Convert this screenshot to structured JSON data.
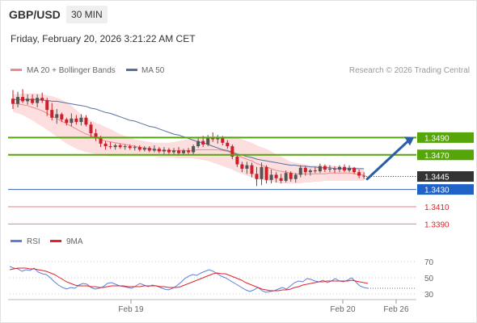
{
  "header": {
    "symbol": "GBP/USD",
    "timeframe": "30 MIN",
    "datetime": "Friday, February 20, 2026 3:21:22 AM CET"
  },
  "legend_top": {
    "bollinger_label": "MA 20 + Bollinger Bands",
    "ma50_label": "MA 50",
    "credit": "Research © 2026 Trading Central"
  },
  "legend_bottom": {
    "rsi_label": "RSI",
    "ma9_label": "9MA"
  },
  "colors": {
    "up_candle": "#555555",
    "down_candle": "#cc1f2a",
    "ma20": "#f08a8a",
    "bollinger_fill": "#fcdede",
    "ma50": "#5671a0",
    "resistance": "#56a60a",
    "support": "#f07f7f",
    "price": "#333333",
    "blue_label": "#1f63c8",
    "arrow": "#2a5fa8",
    "rsi": "#5b7fd8",
    "rsi_ma": "#e0242a",
    "grid": "#c8c8c8"
  },
  "chart_data": [
    {
      "type": "candlestick",
      "title": "GBP/USD",
      "x_labels": [
        "Feb 19",
        "Feb 20",
        "Feb 26"
      ],
      "ylim": [
        1.3382,
        1.3552
      ],
      "candles": [
        [
          1.3535,
          1.3545,
          1.3523,
          1.3529
        ],
        [
          1.3529,
          1.3543,
          1.3525,
          1.3537
        ],
        [
          1.3537,
          1.3546,
          1.353,
          1.3532
        ],
        [
          1.3532,
          1.354,
          1.3528,
          1.3535
        ],
        [
          1.3535,
          1.354,
          1.3528,
          1.353
        ],
        [
          1.353,
          1.354,
          1.3525,
          1.3536
        ],
        [
          1.3536,
          1.3542,
          1.353,
          1.3533
        ],
        [
          1.3533,
          1.3536,
          1.3515,
          1.3522
        ],
        [
          1.3522,
          1.353,
          1.351,
          1.3513
        ],
        [
          1.3513,
          1.3523,
          1.3506,
          1.3517
        ],
        [
          1.3517,
          1.3519,
          1.3508,
          1.3511
        ],
        [
          1.3511,
          1.3513,
          1.3504,
          1.3507
        ],
        [
          1.3507,
          1.3518,
          1.3503,
          1.3512
        ],
        [
          1.3512,
          1.3516,
          1.3505,
          1.3508
        ],
        [
          1.3508,
          1.3517,
          1.3504,
          1.3513
        ],
        [
          1.3513,
          1.3516,
          1.3503,
          1.3505
        ],
        [
          1.3505,
          1.3508,
          1.349,
          1.3495
        ],
        [
          1.3495,
          1.35,
          1.3486,
          1.3489
        ],
        [
          1.3489,
          1.3492,
          1.3479,
          1.3483
        ],
        [
          1.3483,
          1.3486,
          1.3476,
          1.348
        ],
        [
          1.348,
          1.3485,
          1.3477,
          1.3479
        ],
        [
          1.3479,
          1.3483,
          1.3476,
          1.3481
        ],
        [
          1.3481,
          1.3483,
          1.3477,
          1.3479
        ],
        [
          1.3479,
          1.3482,
          1.3476,
          1.348
        ],
        [
          1.348,
          1.3482,
          1.3476,
          1.3478
        ],
        [
          1.3478,
          1.3481,
          1.3475,
          1.3479
        ],
        [
          1.3479,
          1.3481,
          1.3474,
          1.3476
        ],
        [
          1.3476,
          1.348,
          1.3474,
          1.3478
        ],
        [
          1.3478,
          1.348,
          1.3473,
          1.3475
        ],
        [
          1.3475,
          1.3481,
          1.3473,
          1.3477
        ],
        [
          1.3477,
          1.3479,
          1.3472,
          1.3474
        ],
        [
          1.3474,
          1.3479,
          1.3471,
          1.3476
        ],
        [
          1.3476,
          1.3478,
          1.3471,
          1.3473
        ],
        [
          1.3473,
          1.3478,
          1.347,
          1.3475
        ],
        [
          1.3475,
          1.3479,
          1.3469,
          1.3472
        ],
        [
          1.3472,
          1.3477,
          1.347,
          1.3475
        ],
        [
          1.3475,
          1.3478,
          1.3471,
          1.3473
        ],
        [
          1.3473,
          1.3482,
          1.347,
          1.348
        ],
        [
          1.348,
          1.349,
          1.3478,
          1.3486
        ],
        [
          1.3486,
          1.3492,
          1.3479,
          1.3482
        ],
        [
          1.3482,
          1.3493,
          1.348,
          1.349
        ],
        [
          1.349,
          1.3496,
          1.3485,
          1.3488
        ],
        [
          1.3488,
          1.3493,
          1.3483,
          1.349
        ],
        [
          1.349,
          1.3492,
          1.3481,
          1.3484
        ],
        [
          1.3484,
          1.3487,
          1.3477,
          1.348
        ],
        [
          1.348,
          1.3482,
          1.3465,
          1.3468
        ],
        [
          1.3468,
          1.347,
          1.3456,
          1.3459
        ],
        [
          1.3459,
          1.3462,
          1.345,
          1.3454
        ],
        [
          1.3454,
          1.3462,
          1.3448,
          1.3458
        ],
        [
          1.3458,
          1.3461,
          1.3444,
          1.3448
        ],
        [
          1.3448,
          1.3456,
          1.3434,
          1.3442
        ],
        [
          1.3442,
          1.3461,
          1.3435,
          1.3456
        ],
        [
          1.3456,
          1.3458,
          1.3437,
          1.3441
        ],
        [
          1.3441,
          1.3453,
          1.3437,
          1.3447
        ],
        [
          1.3447,
          1.345,
          1.3438,
          1.3443
        ],
        [
          1.3443,
          1.3448,
          1.3437,
          1.344
        ],
        [
          1.344,
          1.3452,
          1.3438,
          1.3449
        ],
        [
          1.3449,
          1.3451,
          1.3439,
          1.3442
        ],
        [
          1.3442,
          1.3449,
          1.3438,
          1.3447
        ],
        [
          1.3447,
          1.3458,
          1.3444,
          1.3455
        ],
        [
          1.3455,
          1.3457,
          1.3446,
          1.345
        ],
        [
          1.345,
          1.3454,
          1.3446,
          1.3452
        ],
        [
          1.3452,
          1.3456,
          1.3449,
          1.3451
        ],
        [
          1.3451,
          1.346,
          1.3449,
          1.3457
        ],
        [
          1.3457,
          1.3459,
          1.345,
          1.3453
        ],
        [
          1.3453,
          1.3458,
          1.345,
          1.3454
        ],
        [
          1.3454,
          1.3457,
          1.3449,
          1.3453
        ],
        [
          1.3453,
          1.3458,
          1.345,
          1.3456
        ],
        [
          1.3456,
          1.3459,
          1.345,
          1.3452
        ],
        [
          1.3452,
          1.3458,
          1.345,
          1.3455
        ],
        [
          1.3455,
          1.3456,
          1.3448,
          1.345
        ],
        [
          1.345,
          1.3453,
          1.3443,
          1.3446
        ],
        [
          1.3446,
          1.345,
          1.3442,
          1.3445
        ]
      ],
      "ma20": [
        1.353,
        1.3529,
        1.3528,
        1.3527,
        1.3525,
        1.3523,
        1.3521,
        1.3518,
        1.3515,
        1.3512,
        1.3509,
        1.3506,
        1.3503,
        1.35,
        1.3497,
        1.3494,
        1.3492,
        1.349,
        1.3488,
        1.3486,
        1.3485,
        1.3484,
        1.3483,
        1.3482,
        1.3481,
        1.348,
        1.3479,
        1.3478,
        1.3477,
        1.3476,
        1.3475,
        1.3475,
        1.3475,
        1.3475,
        1.3475,
        1.3475,
        1.3475,
        1.3475,
        1.3476,
        1.3476,
        1.3476,
        1.3476,
        1.3476,
        1.3475,
        1.3474,
        1.3472,
        1.347,
        1.3467,
        1.3465,
        1.3463,
        1.346,
        1.3458,
        1.3456,
        1.3454,
        1.3452,
        1.3451,
        1.345,
        1.3449,
        1.3448,
        1.3448,
        1.3448,
        1.3448,
        1.3448,
        1.3448,
        1.3448,
        1.3449,
        1.3449,
        1.3449,
        1.3449,
        1.3449,
        1.3448,
        1.3447,
        1.3447
      ],
      "bollinger_upper": [
        1.354,
        1.354,
        1.3541,
        1.3541,
        1.3541,
        1.3541,
        1.354,
        1.3539,
        1.3538,
        1.3536,
        1.3534,
        1.3531,
        1.3527,
        1.3522,
        1.3517,
        1.3513,
        1.351,
        1.3507,
        1.3505,
        1.3502,
        1.35,
        1.3497,
        1.3494,
        1.3492,
        1.349,
        1.3488,
        1.3487,
        1.3486,
        1.3485,
        1.3484,
        1.3484,
        1.3484,
        1.3484,
        1.3485,
        1.3486,
        1.3487,
        1.3488,
        1.3489,
        1.349,
        1.3491,
        1.3491,
        1.3491,
        1.3491,
        1.3491,
        1.3491,
        1.3491,
        1.349,
        1.3488,
        1.3486,
        1.3484,
        1.3481,
        1.3479,
        1.3477,
        1.3474,
        1.3471,
        1.3468,
        1.3465,
        1.3462,
        1.3461,
        1.346,
        1.3459,
        1.3458,
        1.3458,
        1.3458,
        1.3458,
        1.3458,
        1.3457,
        1.3457,
        1.3456,
        1.3456,
        1.3456,
        1.3455,
        1.3454
      ],
      "bollinger_lower": [
        1.352,
        1.3518,
        1.3516,
        1.3513,
        1.351,
        1.3506,
        1.3503,
        1.3499,
        1.3495,
        1.3491,
        1.3487,
        1.3483,
        1.348,
        1.3477,
        1.3475,
        1.3473,
        1.3472,
        1.3471,
        1.347,
        1.3469,
        1.3468,
        1.3468,
        1.3468,
        1.3468,
        1.3468,
        1.3468,
        1.3468,
        1.3468,
        1.3468,
        1.3468,
        1.3467,
        1.3467,
        1.3467,
        1.3467,
        1.3466,
        1.3466,
        1.3466,
        1.3466,
        1.3465,
        1.3464,
        1.3463,
        1.3461,
        1.3459,
        1.3457,
        1.3455,
        1.3453,
        1.345,
        1.3448,
        1.3446,
        1.3444,
        1.3442,
        1.3441,
        1.344,
        1.3439,
        1.3438,
        1.3437,
        1.3437,
        1.3437,
        1.3437,
        1.3437,
        1.3438,
        1.3438,
        1.3439,
        1.3439,
        1.344,
        1.344,
        1.344,
        1.344,
        1.344,
        1.344,
        1.344,
        1.344,
        1.344
      ],
      "ma50": [
        1.3534,
        1.3534,
        1.3534,
        1.3534,
        1.3534,
        1.3534,
        1.3533,
        1.3533,
        1.3532,
        1.3532,
        1.3531,
        1.353,
        1.3529,
        1.3528,
        1.3527,
        1.3526,
        1.3524,
        1.3523,
        1.3521,
        1.3519,
        1.3518,
        1.3516,
        1.3514,
        1.3512,
        1.351,
        1.3509,
        1.3507,
        1.3505,
        1.3503,
        1.3502,
        1.35,
        1.3498,
        1.3496,
        1.3494,
        1.3493,
        1.3491,
        1.3489,
        1.3487,
        1.3485,
        1.3484,
        1.3482,
        1.348,
        1.3478,
        1.3476,
        1.3475,
        1.3473,
        1.3471,
        1.347,
        1.3468,
        1.3467,
        1.3465,
        1.3464,
        1.3463,
        1.3462,
        1.3461,
        1.346,
        1.3459,
        1.3458,
        1.3458,
        1.3457,
        1.3457,
        1.3456,
        1.3456,
        1.3455,
        1.3455,
        1.3455,
        1.3454,
        1.3454,
        1.3454,
        1.3454,
        1.3454,
        1.3454,
        1.3454
      ],
      "levels": [
        {
          "value": "1.3490",
          "kind": "resistance"
        },
        {
          "value": "1.3470",
          "kind": "resistance"
        },
        {
          "value": "1.3445",
          "kind": "price"
        },
        {
          "value": "1.3430",
          "kind": "pivot"
        },
        {
          "value": "1.3410",
          "kind": "support"
        },
        {
          "value": "1.3390",
          "kind": "support"
        }
      ],
      "forecast_arrow": {
        "from": 1.3442,
        "to": 1.349,
        "direction": "up"
      }
    },
    {
      "type": "line",
      "series": [
        {
          "name": "RSI",
          "values": [
            64,
            62,
            61,
            58,
            60,
            59,
            62,
            57,
            55,
            54,
            50,
            45,
            41,
            38,
            36,
            38,
            37,
            41,
            43,
            42,
            38,
            36,
            37,
            39,
            43,
            44,
            42,
            40,
            39,
            38,
            37,
            40,
            43,
            41,
            39,
            41,
            40,
            38,
            36,
            35,
            37,
            40,
            44,
            49,
            52,
            54,
            53,
            56,
            58,
            60,
            58,
            55,
            52,
            50,
            47,
            44,
            41,
            38,
            35,
            33,
            35,
            38,
            34,
            32,
            33,
            34,
            36,
            38,
            36,
            40,
            44,
            46,
            45,
            49,
            48,
            46,
            45,
            47,
            44,
            46,
            49,
            46,
            45,
            47,
            50,
            45,
            40,
            38,
            37
          ]
        },
        {
          "name": "9MA",
          "values": [
            60,
            61,
            62,
            62,
            62,
            61,
            61,
            60,
            59,
            58,
            56,
            54,
            51,
            48,
            45,
            43,
            41,
            40,
            40,
            40,
            39,
            39,
            38,
            38,
            39,
            40,
            40,
            40,
            40,
            39,
            39,
            39,
            39,
            40,
            40,
            40,
            40,
            39,
            39,
            38,
            38,
            38,
            39,
            41,
            43,
            45,
            47,
            49,
            51,
            53,
            55,
            56,
            55,
            55,
            53,
            51,
            49,
            47,
            44,
            42,
            40,
            38,
            36,
            35,
            34,
            34,
            34,
            35,
            35,
            36,
            38,
            39,
            41,
            42,
            43,
            44,
            45,
            45,
            46,
            46,
            46,
            46,
            46,
            46,
            47,
            46,
            45,
            44,
            43
          ]
        }
      ],
      "x_labels": [
        "Feb 19",
        "Feb 20",
        "Feb 26"
      ],
      "y_ticks": [
        "70",
        "50",
        "30"
      ],
      "ylim": [
        22,
        80
      ]
    }
  ]
}
